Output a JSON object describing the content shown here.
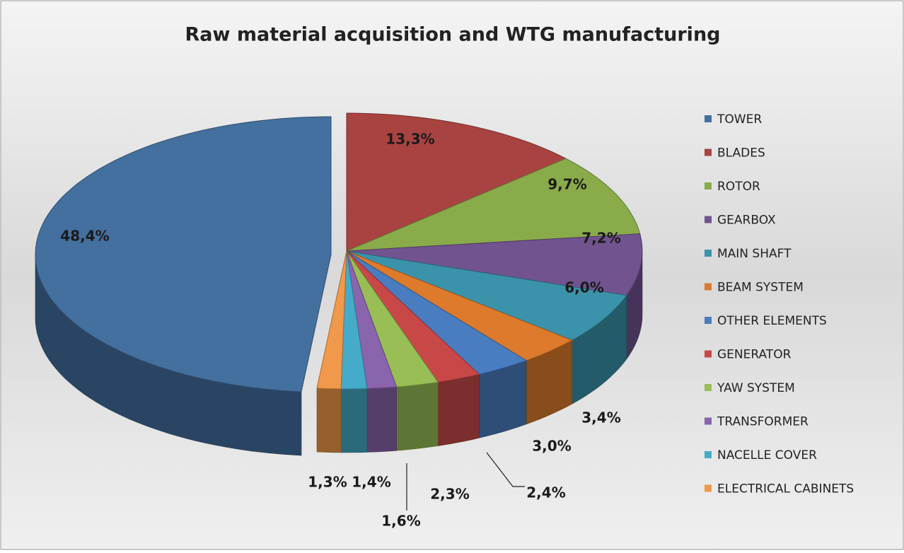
{
  "chart_data": {
    "type": "pie3d",
    "title": "Raw material acquisition and WTG manufacturing",
    "categories": [
      "TOWER",
      "BLADES",
      "ROTOR",
      "GEARBOX",
      "MAIN SHAFT",
      "BEAM SYSTEM",
      "OTHER ELEMENTS",
      "GENERATOR",
      "YAW SYSTEM",
      "TRANSFORMER",
      "NACELLE COVER",
      "ELECTRICAL CABINETS"
    ],
    "values": [
      48.4,
      13.3,
      9.7,
      7.2,
      6.0,
      3.4,
      3.0,
      2.4,
      2.3,
      1.6,
      1.4,
      1.3
    ],
    "value_labels": [
      "48,4%",
      "13,3%",
      "9,7%",
      "7,2%",
      "6,0%",
      "3,4%",
      "3,0%",
      "2,4%",
      "2,3%",
      "1,6%",
      "1,4%",
      "1,3%"
    ],
    "colors": [
      "#44709f",
      "#a84341",
      "#8aab4a",
      "#71538f",
      "#3a93aa",
      "#dd7a2c",
      "#4a7cc0",
      "#c84848",
      "#98be55",
      "#8a64ad",
      "#45abc8",
      "#f0994a"
    ],
    "legend": "right"
  }
}
